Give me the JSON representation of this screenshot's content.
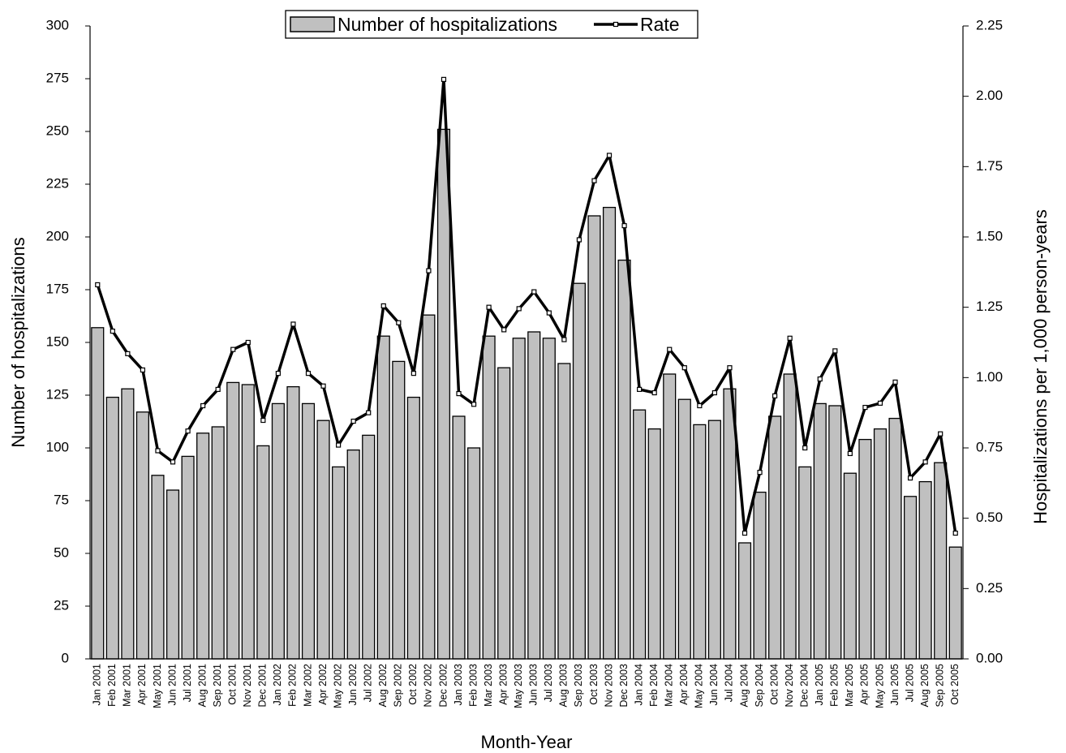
{
  "chart_data": {
    "type": "bar+line",
    "x_label": "Month-Year",
    "y_label": "Number of hospitalizations",
    "y2_label": "Hospitalizations per 1,000 person-years",
    "categories": [
      "Jan 2001",
      "Feb 2001",
      "Mar 2001",
      "Apr 2001",
      "May 2001",
      "Jun 2001",
      "Jul 2001",
      "Aug 2001",
      "Sep 2001",
      "Oct 2001",
      "Nov 2001",
      "Dec 2001",
      "Jan 2002",
      "Feb 2002",
      "Mar 2002",
      "Apr 2002",
      "May 2002",
      "Jun 2002",
      "Jul 2002",
      "Aug 2002",
      "Sep 2002",
      "Oct 2002",
      "Nov 2002",
      "Dec 2002",
      "Jan 2003",
      "Feb 2003",
      "Mar 2003",
      "Apr 2003",
      "May 2003",
      "Jun 2003",
      "Jul 2003",
      "Aug 2003",
      "Sep 2003",
      "Oct 2003",
      "Nov 2003",
      "Dec 2003",
      "Jan 2004",
      "Feb 2004",
      "Mar 2004",
      "Apr 2004",
      "May 2004",
      "Jun 2004",
      "Jul 2004",
      "Aug 2004",
      "Sep 2004",
      "Oct 2004",
      "Nov 2004",
      "Dec 2004",
      "Jan 2005",
      "Feb 2005",
      "Mar 2005",
      "Apr 2005",
      "May 2005",
      "Jun 2005",
      "Jul 2005",
      "Aug 2005",
      "Sep 2005",
      "Oct 2005"
    ],
    "series": [
      {
        "name": "Number of hospitalizations",
        "type": "bar",
        "color": "#c0c0c0",
        "values": [
          157,
          124,
          128,
          117,
          87,
          80,
          96,
          107,
          110,
          131,
          130,
          101,
          121,
          129,
          121,
          113,
          91,
          99,
          106,
          153,
          141,
          124,
          163,
          251,
          115,
          100,
          153,
          138,
          152,
          155,
          152,
          140,
          178,
          210,
          214,
          189,
          118,
          109,
          135,
          123,
          111,
          113,
          128,
          55,
          79,
          115,
          135,
          91,
          121,
          120,
          88,
          104,
          109,
          114,
          77,
          84,
          93,
          53
        ]
      },
      {
        "name": "Rate",
        "type": "line",
        "color": "#000000",
        "axis": "y2",
        "values": [
          1.33,
          1.165,
          1.085,
          1.027,
          0.74,
          0.7,
          0.81,
          0.9,
          0.958,
          1.1,
          1.125,
          0.848,
          1.015,
          1.19,
          1.015,
          0.97,
          0.76,
          0.845,
          0.875,
          1.255,
          1.195,
          1.015,
          1.38,
          2.06,
          0.943,
          0.905,
          1.25,
          1.17,
          1.245,
          1.305,
          1.23,
          1.135,
          1.49,
          1.7,
          1.79,
          1.54,
          0.958,
          0.946,
          1.1,
          1.035,
          0.9,
          0.946,
          1.035,
          0.447,
          0.663,
          0.935,
          1.14,
          0.75,
          0.995,
          1.095,
          0.73,
          0.894,
          0.909,
          0.984,
          0.643,
          0.7,
          0.8,
          0.447
        ]
      }
    ],
    "ylim": [
      0,
      300
    ],
    "yticks": [
      0,
      25,
      50,
      75,
      100,
      125,
      150,
      175,
      200,
      225,
      250,
      275,
      300
    ],
    "y2lim": [
      0,
      2.25
    ],
    "y2ticks": [
      {
        "value": 0,
        "label": "0.00"
      },
      0.25,
      {
        "value": 0.5,
        "label": "0.50"
      },
      0.75,
      {
        "value": 1,
        "label": "1.00"
      },
      1.25,
      {
        "value": 1.5,
        "label": "1.50"
      },
      1.75,
      {
        "value": 2,
        "label": "2.00"
      },
      2.25
    ],
    "legend": "top"
  }
}
